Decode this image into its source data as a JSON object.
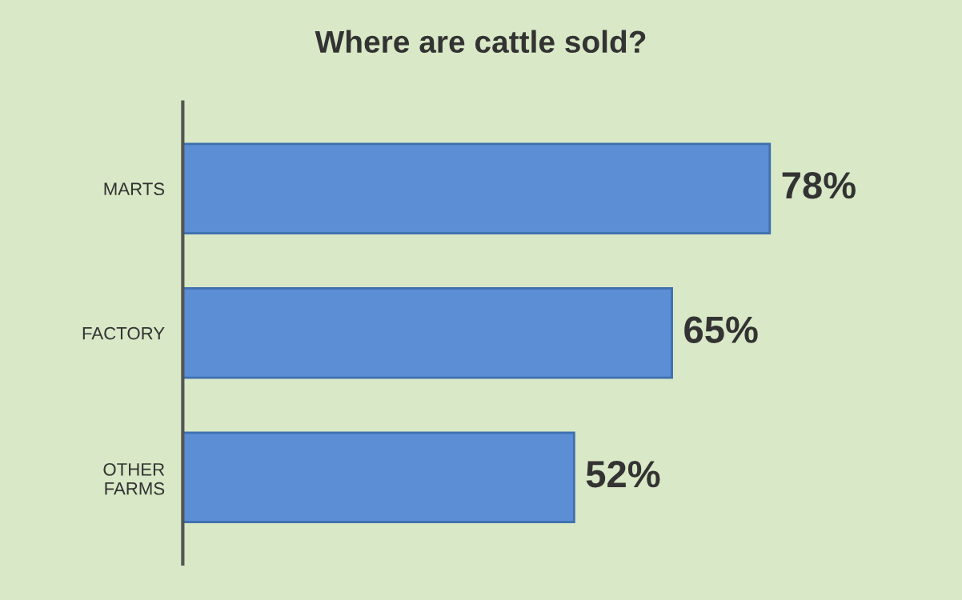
{
  "chart_data": {
    "type": "bar",
    "orientation": "horizontal",
    "title": "Where are cattle sold?",
    "categories": [
      "MARTS",
      "FACTORY",
      "OTHER\nFARMS"
    ],
    "values": [
      78,
      65,
      52
    ],
    "value_labels": [
      "78%",
      "65%",
      "52%"
    ],
    "color": "#5b8ed4",
    "grid": false,
    "legend": false
  }
}
